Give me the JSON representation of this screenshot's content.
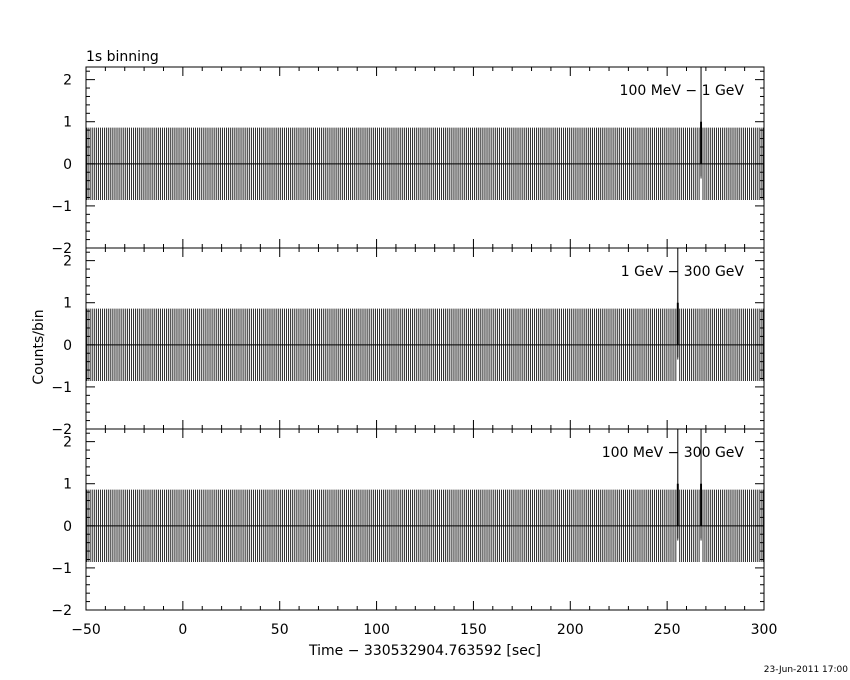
{
  "header": {
    "title": "1s binning"
  },
  "footer": {
    "timestamp": "23-Jun-2011 17:00"
  },
  "chart_data": {
    "type": "bar",
    "title": "1s binning",
    "xlabel": "Time − 330532904.763592 [sec]",
    "ylabel": "Counts/bin",
    "xlim": [
      -50,
      300
    ],
    "ylim": [
      -2,
      2.3
    ],
    "bin_width": 1,
    "error_bar_half_height": 0.86,
    "x_ticks": [
      -50,
      0,
      50,
      100,
      150,
      200,
      250,
      300
    ],
    "x_tick_labels": [
      "−50",
      "0",
      "50",
      "100",
      "150",
      "200",
      "250",
      "300"
    ],
    "y_ticks": [
      -2,
      -1,
      0,
      1,
      2
    ],
    "y_tick_labels": [
      "−2",
      "−1",
      "0",
      "1",
      "2"
    ],
    "panels": [
      {
        "label": "100 MeV − 1 GeV",
        "events": [
          {
            "time": 267.5,
            "counts": 1
          }
        ]
      },
      {
        "label": "1 GeV − 300 GeV",
        "events": [
          {
            "time": 255.5,
            "counts": 1
          }
        ]
      },
      {
        "label": "100 MeV − 300 GeV",
        "events": [
          {
            "time": 255.5,
            "counts": 1
          },
          {
            "time": 267.5,
            "counts": 1
          }
        ]
      }
    ]
  }
}
